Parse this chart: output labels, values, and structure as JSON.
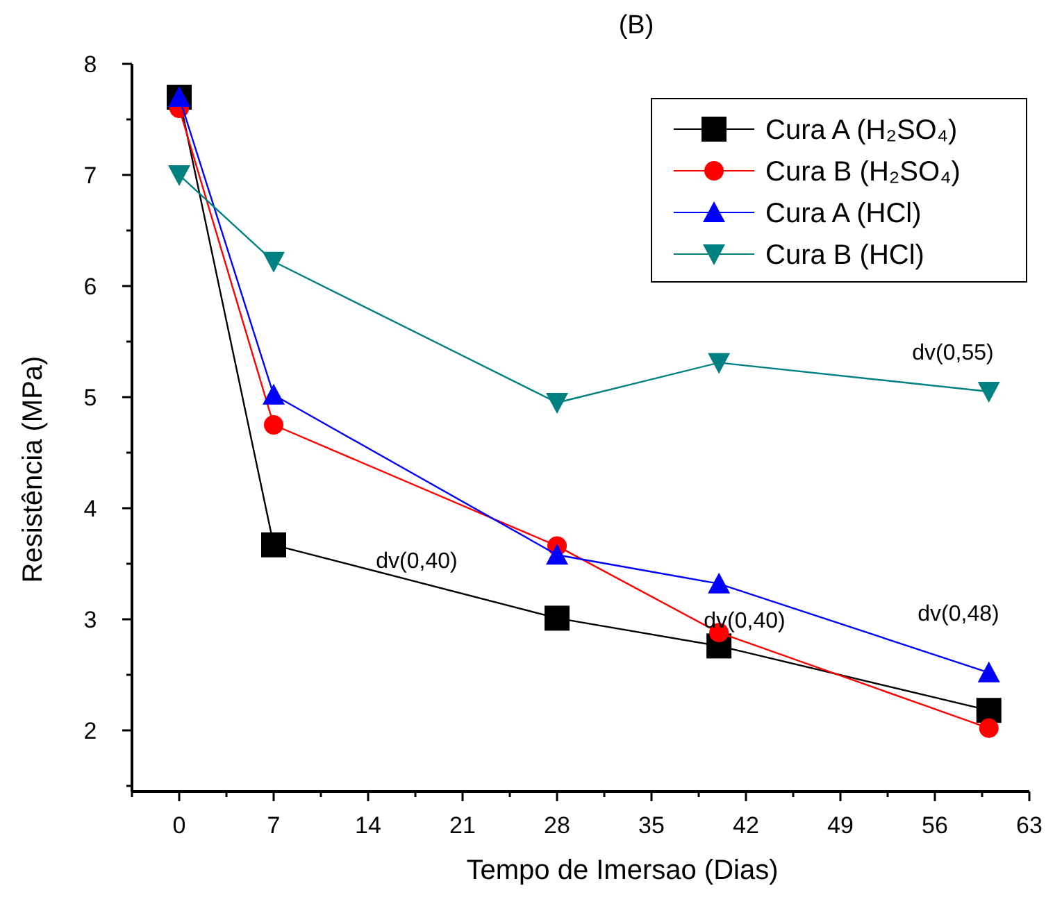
{
  "chart_data": {
    "type": "line",
    "title": "(B)",
    "xlabel": "Tempo de Imersao (Dias)",
    "ylabel": "Resistência (MPa)",
    "x": [
      0,
      7,
      28,
      40,
      60
    ],
    "xlim": [
      -3.5,
      63
    ],
    "xticks": [
      {
        "value": -3.5,
        "label": null
      },
      0,
      {
        "value": 3.5,
        "label": null
      },
      7,
      {
        "value": 10.5,
        "label": null
      },
      14,
      {
        "value": 17.5,
        "label": null
      },
      21,
      {
        "value": 24.5,
        "label": null
      },
      28,
      {
        "value": 31.5,
        "label": null
      },
      35,
      {
        "value": 38.5,
        "label": null
      },
      42,
      {
        "value": 45.5,
        "label": null
      },
      49,
      {
        "value": 52.5,
        "label": null
      },
      56,
      {
        "value": 59.5,
        "label": null
      },
      63
    ],
    "ylim": [
      1.45,
      8
    ],
    "yticks": [
      {
        "value": 1.5,
        "label": null
      },
      2,
      {
        "value": 2.5,
        "label": null
      },
      3,
      {
        "value": 3.5,
        "label": null
      },
      4,
      {
        "value": 4.5,
        "label": null
      },
      5,
      {
        "value": 5.5,
        "label": null
      },
      6,
      {
        "value": 6.5,
        "label": null
      },
      7,
      {
        "value": 7.5,
        "label": null
      },
      8
    ],
    "series": [
      {
        "name": "Cura A (H₂SO₄)",
        "color": "#000000",
        "marker": "square",
        "values": [
          7.7,
          3.67,
          3.01,
          2.76,
          2.18
        ]
      },
      {
        "name": "Cura B (H₂SO₄)",
        "color": "#ff0000",
        "marker": "circle",
        "values": [
          7.6,
          4.75,
          3.66,
          2.88,
          2.02
        ]
      },
      {
        "name": "Cura A (HCl)",
        "color": "#0000ff",
        "marker": "triangle",
        "values": [
          7.7,
          5.02,
          3.58,
          3.32,
          2.52
        ]
      },
      {
        "name": "Cura B (HCl)",
        "color": "#008080",
        "marker": "triangle-down",
        "values": [
          7.0,
          6.22,
          4.95,
          5.31,
          5.05
        ]
      }
    ],
    "annotations": [
      "dv(0,40)",
      "dv(0,40)",
      "dv(0,48)",
      "dv(0,55)"
    ],
    "legend": "top right",
    "grid": false
  }
}
